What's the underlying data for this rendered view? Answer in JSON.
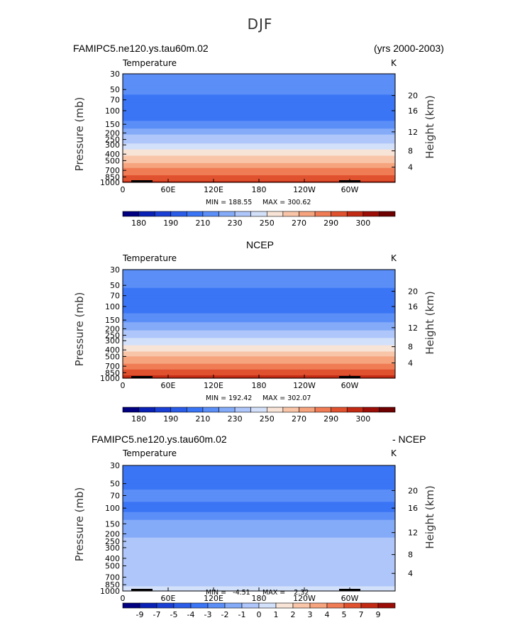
{
  "title": "DJF",
  "colors": {
    "temperature": [
      "#000080",
      "#0a21b5",
      "#1a3fd4",
      "#2a5ce8",
      "#3a75f5",
      "#5b8ef7",
      "#84abf8",
      "#aec6f9",
      "#d3e0f9",
      "#f8e4d6",
      "#f9c5a8",
      "#f5a47e",
      "#f07c55",
      "#e0522f",
      "#c32a14",
      "#9b0d06",
      "#6e0000"
    ],
    "difference": [
      "#000080",
      "#0a21b5",
      "#1a3fd4",
      "#2a5ce8",
      "#3a75f5",
      "#5b8ef7",
      "#84abf8",
      "#aec6f9",
      "#d3e0f9",
      "#f8e4d6",
      "#f9c5a8",
      "#f5a47e",
      "#f07c55",
      "#e0522f",
      "#c32a14",
      "#9b0d06"
    ]
  },
  "chart_data": [
    {
      "type": "heatmap",
      "title_left": "FAMIPC5.ne120.ys.tau60m.02",
      "title_right": "(yrs 2000-2003)",
      "variable": "Temperature",
      "units": "K",
      "xlabel": "",
      "ylabel": "Pressure (mb)",
      "ylabel_right": "Height (km)",
      "x_ticks": [
        "0",
        "60E",
        "120E",
        "180",
        "120W",
        "60W"
      ],
      "y_ticks": [
        "30",
        "50",
        "70",
        "100",
        "150",
        "200",
        "250",
        "300",
        "400",
        "500",
        "700",
        "850",
        "1000"
      ],
      "y_ticks_right": [
        "20",
        "16",
        "12",
        "8",
        "4"
      ],
      "min_label": "MIN = 188.55",
      "max_label": "MAX = 300.62",
      "levels": [
        180,
        185,
        190,
        200,
        210,
        215,
        220,
        230,
        240,
        250,
        260,
        270,
        280,
        290,
        295,
        300
      ],
      "colorbar_labels": [
        "180",
        "190",
        "210",
        "230",
        "250",
        "270",
        "290",
        "300"
      ],
      "profile": [
        {
          "p": 30,
          "t": 214
        },
        {
          "p": 50,
          "t": 213
        },
        {
          "p": 70,
          "t": 207
        },
        {
          "p": 100,
          "t": 203
        },
        {
          "p": 150,
          "t": 213
        },
        {
          "p": 200,
          "t": 218
        },
        {
          "p": 250,
          "t": 225
        },
        {
          "p": 300,
          "t": 232
        },
        {
          "p": 400,
          "t": 247
        },
        {
          "p": 500,
          "t": 258
        },
        {
          "p": 700,
          "t": 273
        },
        {
          "p": 850,
          "t": 283
        },
        {
          "p": 1000,
          "t": 293
        }
      ]
    },
    {
      "type": "heatmap",
      "title_center": "NCEP",
      "variable": "Temperature",
      "units": "K",
      "xlabel": "",
      "ylabel": "Pressure (mb)",
      "ylabel_right": "Height (km)",
      "x_ticks": [
        "0",
        "60E",
        "120E",
        "180",
        "120W",
        "60W"
      ],
      "y_ticks": [
        "30",
        "50",
        "70",
        "100",
        "150",
        "200",
        "250",
        "300",
        "400",
        "500",
        "700",
        "850",
        "1000"
      ],
      "y_ticks_right": [
        "20",
        "16",
        "12",
        "8",
        "4"
      ],
      "min_label": "MIN = 192.42",
      "max_label": "MAX = 302.07",
      "levels": [
        180,
        185,
        190,
        200,
        210,
        215,
        220,
        230,
        240,
        250,
        260,
        270,
        280,
        290,
        295,
        300
      ],
      "colorbar_labels": [
        "180",
        "190",
        "210",
        "230",
        "250",
        "270",
        "290",
        "300"
      ],
      "profile": [
        {
          "p": 30,
          "t": 215
        },
        {
          "p": 50,
          "t": 212
        },
        {
          "p": 70,
          "t": 206
        },
        {
          "p": 100,
          "t": 205
        },
        {
          "p": 150,
          "t": 214
        },
        {
          "p": 200,
          "t": 219
        },
        {
          "p": 250,
          "t": 226
        },
        {
          "p": 300,
          "t": 233
        },
        {
          "p": 400,
          "t": 248
        },
        {
          "p": 500,
          "t": 259
        },
        {
          "p": 700,
          "t": 274
        },
        {
          "p": 850,
          "t": 284
        },
        {
          "p": 1000,
          "t": 295
        }
      ]
    },
    {
      "type": "heatmap",
      "title_left": "FAMIPC5.ne120.ys.tau60m.02",
      "title_right": "- NCEP",
      "variable": "Temperature",
      "units": "K",
      "xlabel": "",
      "ylabel": "Pressure (mb)",
      "ylabel_right": "Height (km)",
      "x_ticks": [
        "0",
        "60E",
        "120E",
        "180",
        "120W",
        "60W"
      ],
      "y_ticks": [
        "30",
        "50",
        "70",
        "100",
        "150",
        "200",
        "250",
        "300",
        "400",
        "500",
        "700",
        "850",
        "1000"
      ],
      "y_ticks_right": [
        "20",
        "16",
        "12",
        "8",
        "4"
      ],
      "min_label": "MIN =   -4.51",
      "max_label": "MAX =    2.32",
      "levels": [
        -9,
        -7,
        -5,
        -4,
        -3,
        -2,
        -1,
        0,
        1,
        2,
        3,
        4,
        5,
        7,
        9
      ],
      "colorbar_labels": [
        "-9",
        "-7",
        "-5",
        "-4",
        "-3",
        "-2",
        "-1",
        "0",
        "1",
        "2",
        "3",
        "4",
        "5",
        "7",
        "9"
      ],
      "profile": [
        {
          "p": 30,
          "t": -3.2
        },
        {
          "p": 50,
          "t": -3.4
        },
        {
          "p": 70,
          "t": -2.6
        },
        {
          "p": 100,
          "t": -3.3
        },
        {
          "p": 150,
          "t": -1.6
        },
        {
          "p": 200,
          "t": -1.3
        },
        {
          "p": 250,
          "t": -0.6
        },
        {
          "p": 300,
          "t": -0.4
        },
        {
          "p": 400,
          "t": -0.3
        },
        {
          "p": 500,
          "t": -0.4
        },
        {
          "p": 700,
          "t": -0.5
        },
        {
          "p": 850,
          "t": -0.1
        },
        {
          "p": 1000,
          "t": 0.4
        }
      ]
    }
  ]
}
